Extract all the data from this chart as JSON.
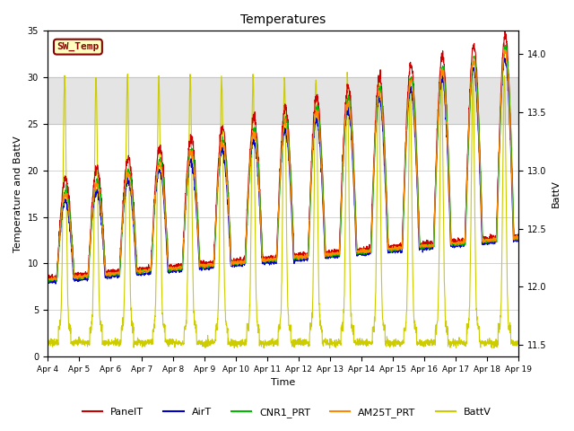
{
  "title": "Temperatures",
  "xlabel": "Time",
  "ylabel_left": "Temperature and BattV",
  "ylabel_right": "BattV",
  "ylim_left": [
    0,
    35
  ],
  "ylim_right": [
    11.4,
    14.2
  ],
  "xtick_labels": [
    "Apr 4",
    "Apr 5",
    "Apr 6",
    "Apr 7",
    "Apr 8",
    "Apr 9",
    "Apr 10",
    "Apr 11",
    "Apr 12",
    "Apr 13",
    "Apr 14",
    "Apr 15",
    "Apr 16",
    "Apr 17",
    "Apr 18",
    "Apr 19"
  ],
  "gray_band": [
    25,
    30
  ],
  "sw_temp_label": "SW_Temp",
  "sw_temp_color": "#8B0000",
  "sw_temp_bg": "#FFFFC0",
  "line_colors": {
    "PanelT": "#CC0000",
    "AirT": "#0000CC",
    "CNR1_PRT": "#00BB00",
    "AM25T_PRT": "#FF8800",
    "BattV": "#CCCC00"
  },
  "background_color": "#ffffff"
}
